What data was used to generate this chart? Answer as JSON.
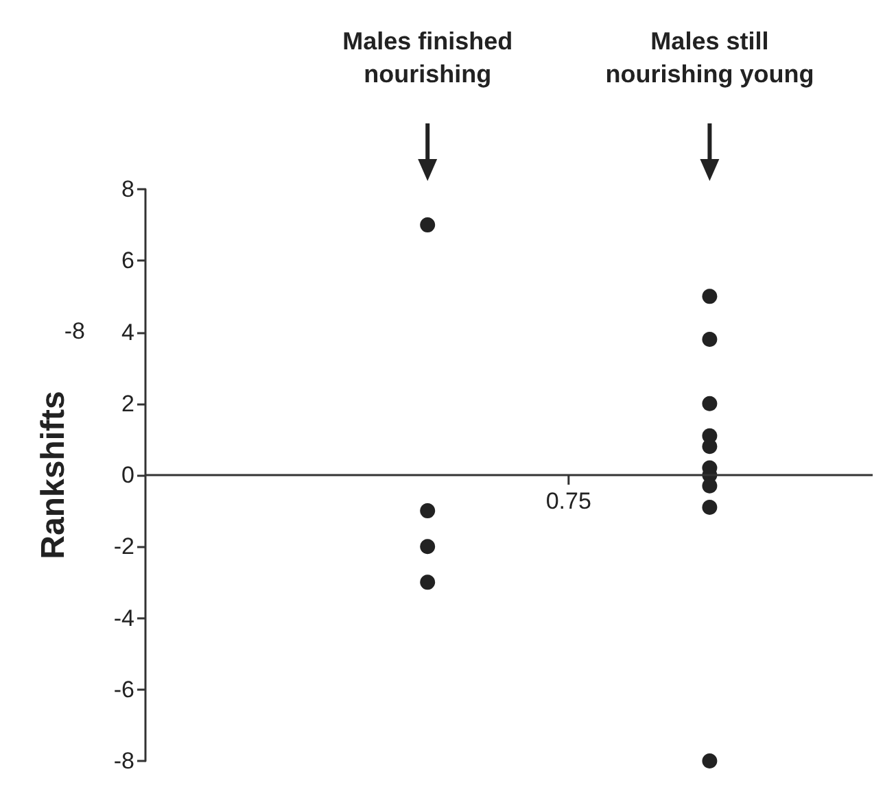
{
  "chart_data": {
    "type": "scatter",
    "ylabel": "Rankshifts",
    "categories": [
      null,
      null,
      "Males finished\nnourishing",
      null,
      "Males still\nnourishing young",
      null
    ],
    "annotations": [
      "0.75",
      "-8"
    ],
    "series": [
      {
        "color": "#222222",
        "x": [
          "Males finished\nnourishing",
          "Males finished\nnourishing",
          "Males finished\nnourishing",
          "Males finished\nnourishing"
        ],
        "values": [
          7,
          -1,
          -2,
          -3
        ]
      },
      {
        "color": "#222222",
        "x": [
          "Males still\nnourishing young",
          "Males still\nnourishing young",
          "Males still\nnourishing young",
          "Males still\nnourishing young",
          "Males still\nnourishing young",
          "Males still\nnourishing young",
          "Males still\nnourishing young",
          "Males still\nnourishing young",
          "Males still\nnourishing young",
          "Males still\nnourishing young"
        ],
        "values": [
          5,
          3.8,
          2,
          1.1,
          0.8,
          0.2,
          0,
          -0.3,
          -0.9,
          -8
        ]
      }
    ],
    "ref_lines": [
      {
        "axis": "y",
        "value": 0,
        "color": "#333333"
      }
    ],
    "ylim": [
      -8,
      8
    ],
    "yticks": [
      -8,
      -6,
      -4,
      -2,
      0,
      2,
      4,
      6,
      8
    ],
    "marker": "circle"
  }
}
